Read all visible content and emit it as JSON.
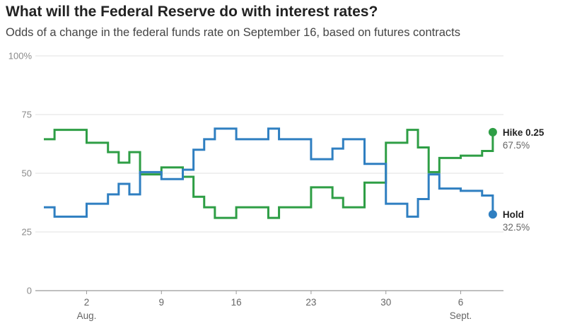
{
  "title": "What will the Federal Reserve do with interest rates?",
  "subtitle": "Odds of a change in the federal funds rate on September 16, based on futures contracts",
  "colors": {
    "hike": "#2e9e45",
    "hold": "#2f7fc1",
    "grid": "#e2e2e2",
    "axis": "#9a9a9a"
  },
  "chart_data": {
    "type": "line",
    "step": true,
    "ylim": [
      0,
      100
    ],
    "y_ticks": [
      {
        "value": 0,
        "label": "0"
      },
      {
        "value": 25,
        "label": "25"
      },
      {
        "value": 50,
        "label": "50"
      },
      {
        "value": 75,
        "label": "75"
      },
      {
        "value": 100,
        "label": "100%"
      }
    ],
    "xlim": [
      "2015-07-29",
      "2015-09-10"
    ],
    "x_ticks": [
      {
        "date": "2015-08-02",
        "label": "2",
        "sublabel": "Aug."
      },
      {
        "date": "2015-08-09",
        "label": "9",
        "sublabel": ""
      },
      {
        "date": "2015-08-16",
        "label": "16",
        "sublabel": ""
      },
      {
        "date": "2015-08-23",
        "label": "23",
        "sublabel": ""
      },
      {
        "date": "2015-08-30",
        "label": "30",
        "sublabel": ""
      },
      {
        "date": "2015-09-06",
        "label": "6",
        "sublabel": "Sept."
      }
    ],
    "grid": true,
    "series": [
      {
        "name": "Hike 0.25",
        "end_label": "67.5%",
        "color_key": "hike",
        "points": [
          [
            "2015-07-29",
            64.5
          ],
          [
            "2015-07-30",
            68.5
          ],
          [
            "2015-07-31",
            68.5
          ],
          [
            "2015-08-02",
            63.0
          ],
          [
            "2015-08-03",
            63.0
          ],
          [
            "2015-08-04",
            59.0
          ],
          [
            "2015-08-05",
            54.5
          ],
          [
            "2015-08-06",
            59.0
          ],
          [
            "2015-08-07",
            49.5
          ],
          [
            "2015-08-09",
            52.5
          ],
          [
            "2015-08-11",
            48.5
          ],
          [
            "2015-08-12",
            40.0
          ],
          [
            "2015-08-13",
            35.5
          ],
          [
            "2015-08-14",
            31.0
          ],
          [
            "2015-08-16",
            35.5
          ],
          [
            "2015-08-19",
            31.0
          ],
          [
            "2015-08-20",
            35.5
          ],
          [
            "2015-08-23",
            44.0
          ],
          [
            "2015-08-24",
            44.0
          ],
          [
            "2015-08-25",
            39.5
          ],
          [
            "2015-08-26",
            35.5
          ],
          [
            "2015-08-28",
            46.0
          ],
          [
            "2015-08-30",
            63.0
          ],
          [
            "2015-08-31",
            63.0
          ],
          [
            "2015-09-01",
            68.5
          ],
          [
            "2015-09-02",
            61.0
          ],
          [
            "2015-09-03",
            50.5
          ],
          [
            "2015-09-04",
            56.5
          ],
          [
            "2015-09-06",
            57.5
          ],
          [
            "2015-09-07",
            57.5
          ],
          [
            "2015-09-08",
            59.5
          ],
          [
            "2015-09-09",
            67.5
          ]
        ]
      },
      {
        "name": "Hold",
        "end_label": "32.5%",
        "color_key": "hold",
        "points": [
          [
            "2015-07-29",
            35.5
          ],
          [
            "2015-07-30",
            31.5
          ],
          [
            "2015-07-31",
            31.5
          ],
          [
            "2015-08-02",
            37.0
          ],
          [
            "2015-08-03",
            37.0
          ],
          [
            "2015-08-04",
            41.0
          ],
          [
            "2015-08-05",
            45.5
          ],
          [
            "2015-08-06",
            41.0
          ],
          [
            "2015-08-07",
            50.5
          ],
          [
            "2015-08-09",
            47.5
          ],
          [
            "2015-08-11",
            51.5
          ],
          [
            "2015-08-12",
            60.0
          ],
          [
            "2015-08-13",
            64.5
          ],
          [
            "2015-08-14",
            69.0
          ],
          [
            "2015-08-16",
            64.5
          ],
          [
            "2015-08-19",
            69.0
          ],
          [
            "2015-08-20",
            64.5
          ],
          [
            "2015-08-23",
            56.0
          ],
          [
            "2015-08-24",
            56.0
          ],
          [
            "2015-08-25",
            60.5
          ],
          [
            "2015-08-26",
            64.5
          ],
          [
            "2015-08-28",
            54.0
          ],
          [
            "2015-08-30",
            37.0
          ],
          [
            "2015-08-31",
            37.0
          ],
          [
            "2015-09-01",
            31.5
          ],
          [
            "2015-09-02",
            39.0
          ],
          [
            "2015-09-03",
            49.5
          ],
          [
            "2015-09-04",
            43.5
          ],
          [
            "2015-09-06",
            42.5
          ],
          [
            "2015-09-07",
            42.5
          ],
          [
            "2015-09-08",
            40.5
          ],
          [
            "2015-09-09",
            32.5
          ]
        ]
      }
    ]
  }
}
